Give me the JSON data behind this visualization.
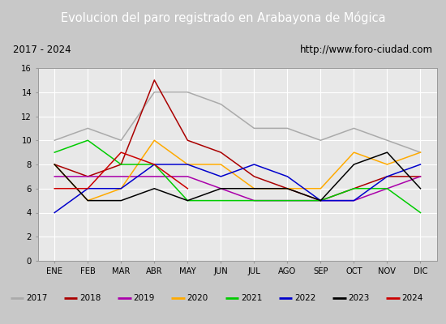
{
  "title": "Evolucion del paro registrado en Arabayona de Mógica",
  "subtitle_left": "2017 - 2024",
  "subtitle_right": "http://www.foro-ciudad.com",
  "months": [
    "ENE",
    "FEB",
    "MAR",
    "ABR",
    "MAY",
    "JUN",
    "JUL",
    "AGO",
    "SEP",
    "OCT",
    "NOV",
    "DIC"
  ],
  "ylim": [
    0,
    16
  ],
  "yticks": [
    0,
    2,
    4,
    6,
    8,
    10,
    12,
    14,
    16
  ],
  "series": {
    "2017": {
      "color": "#aaaaaa",
      "values": [
        10,
        11,
        10,
        14,
        14,
        13,
        11,
        11,
        10,
        11,
        10,
        9
      ]
    },
    "2018": {
      "color": "#aa0000",
      "values": [
        8,
        7,
        8,
        15,
        10,
        9,
        7,
        6,
        5,
        6,
        7,
        7
      ]
    },
    "2019": {
      "color": "#aa00aa",
      "values": [
        7,
        7,
        7,
        7,
        7,
        6,
        5,
        5,
        5,
        5,
        6,
        7
      ]
    },
    "2020": {
      "color": "#ffaa00",
      "values": [
        8,
        5,
        6,
        10,
        8,
        8,
        6,
        6,
        6,
        9,
        8,
        9
      ]
    },
    "2021": {
      "color": "#00cc00",
      "values": [
        9,
        10,
        8,
        8,
        5,
        5,
        5,
        5,
        5,
        6,
        6,
        4
      ]
    },
    "2022": {
      "color": "#0000cc",
      "values": [
        4,
        6,
        6,
        8,
        8,
        7,
        8,
        7,
        5,
        5,
        7,
        8
      ]
    },
    "2023": {
      "color": "#000000",
      "values": [
        8,
        5,
        5,
        6,
        5,
        6,
        6,
        6,
        5,
        8,
        9,
        6
      ]
    },
    "2024": {
      "color": "#cc0000",
      "values": [
        6,
        6,
        9,
        8,
        6,
        null,
        null,
        null,
        null,
        null,
        null,
        null
      ]
    }
  },
  "title_bg_color": "#3a6bcc",
  "title_font_color": "#ffffff",
  "subtitle_bg_color": "#e0e0e0",
  "plot_bg_color": "#e8e8e8",
  "grid_color": "#ffffff",
  "legend_bg_color": "#e0e0e0",
  "outer_bg_color": "#c8c8c8"
}
